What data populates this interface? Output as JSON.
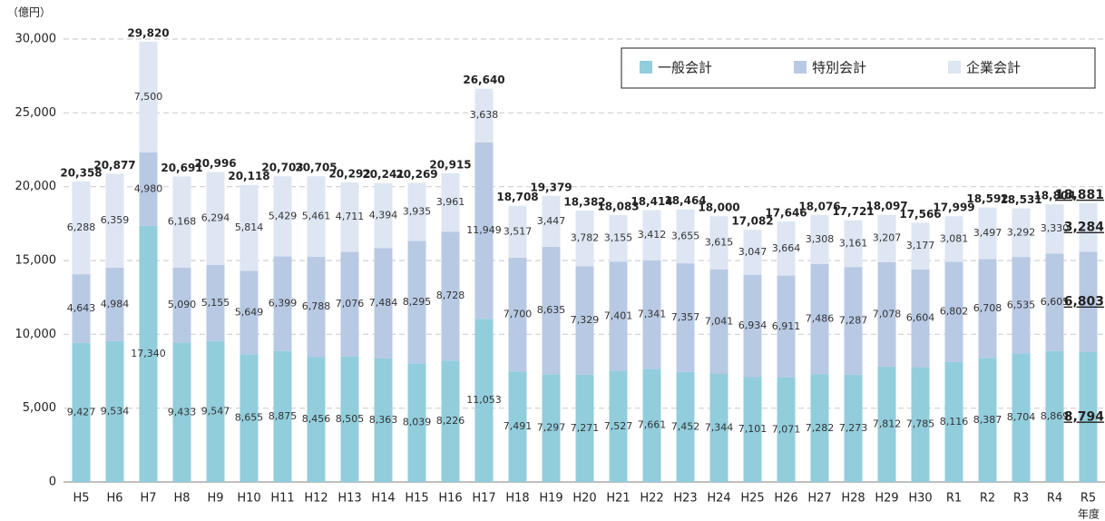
{
  "chart_data": {
    "type": "stacked_bar",
    "y_axis_label": "（億円）",
    "x_axis_label": "年度",
    "categories": [
      "H5",
      "H6",
      "H7",
      "H8",
      "H9",
      "H10",
      "H11",
      "H12",
      "H13",
      "H14",
      "H15",
      "H16",
      "H17",
      "H18",
      "H19",
      "H20",
      "H21",
      "H22",
      "H23",
      "H24",
      "H25",
      "H26",
      "H27",
      "H28",
      "H29",
      "H30",
      "R1",
      "R2",
      "R3",
      "R4",
      "R5"
    ],
    "series": [
      {
        "name": "一般会計",
        "color": "#92cddc",
        "values": [
          9427,
          9534,
          17340,
          9433,
          9547,
          8655,
          8875,
          8456,
          8505,
          8363,
          8039,
          8226,
          11053,
          7491,
          7297,
          7271,
          7527,
          7661,
          7452,
          7344,
          7101,
          7071,
          7282,
          7273,
          7812,
          7785,
          8116,
          8387,
          8704,
          8869,
          8794
        ],
        "value_labels": [
          "9,427",
          "9,534",
          "17,340",
          "9,433",
          "9,547",
          "8,655",
          "8,875",
          "8,456",
          "8,505",
          "8,363",
          "8,039",
          "8,226",
          "11,053",
          "7,491",
          "7,297",
          "7,271",
          "7,527",
          "7,661",
          "7,452",
          "7,344",
          "7,101",
          "7,071",
          "7,282",
          "7,273",
          "7,812",
          "7,785",
          "8,116",
          "8,387",
          "8,704",
          "8,869",
          "8,794"
        ]
      },
      {
        "name": "特別会計",
        "color": "#b8c9e4",
        "values": [
          4643,
          4984,
          4980,
          5090,
          5155,
          5649,
          6399,
          6788,
          7076,
          7484,
          8295,
          8728,
          11949,
          7700,
          8635,
          7329,
          7401,
          7341,
          7357,
          7041,
          6934,
          6911,
          7486,
          7287,
          7078,
          6604,
          6802,
          6708,
          6535,
          6605,
          6803
        ],
        "value_labels": [
          "4,643",
          "4,984",
          "4,980",
          "5,090",
          "5,155",
          "5,649",
          "6,399",
          "6,788",
          "7,076",
          "7,484",
          "8,295",
          "8,728",
          "11,949",
          "7,700",
          "8,635",
          "7,329",
          "7,401",
          "7,341",
          "7,357",
          "7,041",
          "6,934",
          "6,911",
          "7,486",
          "7,287",
          "7,078",
          "6,604",
          "6,802",
          "6,708",
          "6,535",
          "6,605",
          "6,803"
        ]
      },
      {
        "name": "企業会計",
        "color": "#dde6f2",
        "values": [
          6288,
          6359,
          7500,
          6168,
          6294,
          5814,
          5429,
          5461,
          4711,
          4394,
          3935,
          3961,
          3638,
          3517,
          3447,
          3782,
          3155,
          3412,
          3655,
          3615,
          3047,
          3664,
          3308,
          3161,
          3207,
          3177,
          3081,
          3497,
          3292,
          3330,
          3284
        ],
        "value_labels": [
          "6,288",
          "6,359",
          "7,500",
          "6,168",
          "6,294",
          "5,814",
          "5,429",
          "5,461",
          "4,711",
          "4,394",
          "3,935",
          "3,961",
          "3,638",
          "3,517",
          "3,447",
          "3,782",
          "3,155",
          "3,412",
          "3,655",
          "3,615",
          "3,047",
          "3,664",
          "3,308",
          "3,161",
          "3,207",
          "3,177",
          "3,081",
          "3,497",
          "3,292",
          "3,330",
          "3,284"
        ]
      }
    ],
    "totals": [
      20358,
      20877,
      29820,
      20691,
      20996,
      20118,
      20703,
      20705,
      20292,
      20241,
      20269,
      20915,
      26640,
      18708,
      19379,
      18382,
      18083,
      18414,
      18464,
      18000,
      17082,
      17646,
      18076,
      17721,
      18097,
      17566,
      17999,
      18592,
      18531,
      18804,
      18881
    ],
    "total_labels": [
      "20,358",
      "20,877",
      "29,820",
      "20,691",
      "20,996",
      "20,118",
      "20,703",
      "20,705",
      "20,292",
      "20,241",
      "20,269",
      "20,915",
      "26,640",
      "18,708",
      "19,379",
      "18,382",
      "18,083",
      "18,414",
      "18,464",
      "18,000",
      "17,082",
      "17,646",
      "18,076",
      "17,721",
      "18,097",
      "17,566",
      "17,999",
      "18,592",
      "18,531",
      "18,804",
      "18,881"
    ],
    "ylim": [
      0,
      30000
    ],
    "yticks": [
      0,
      {
        "value": 5000,
        "label": "5,000"
      },
      {
        "value": 10000,
        "label": "10,000"
      },
      {
        "value": 15000,
        "label": "15,000"
      },
      {
        "value": 20000,
        "label": "20,000"
      },
      {
        "value": 25000,
        "label": "25,000"
      },
      {
        "value": 30000,
        "label": "30,000"
      }
    ],
    "grid": true,
    "legend": "top-right"
  }
}
